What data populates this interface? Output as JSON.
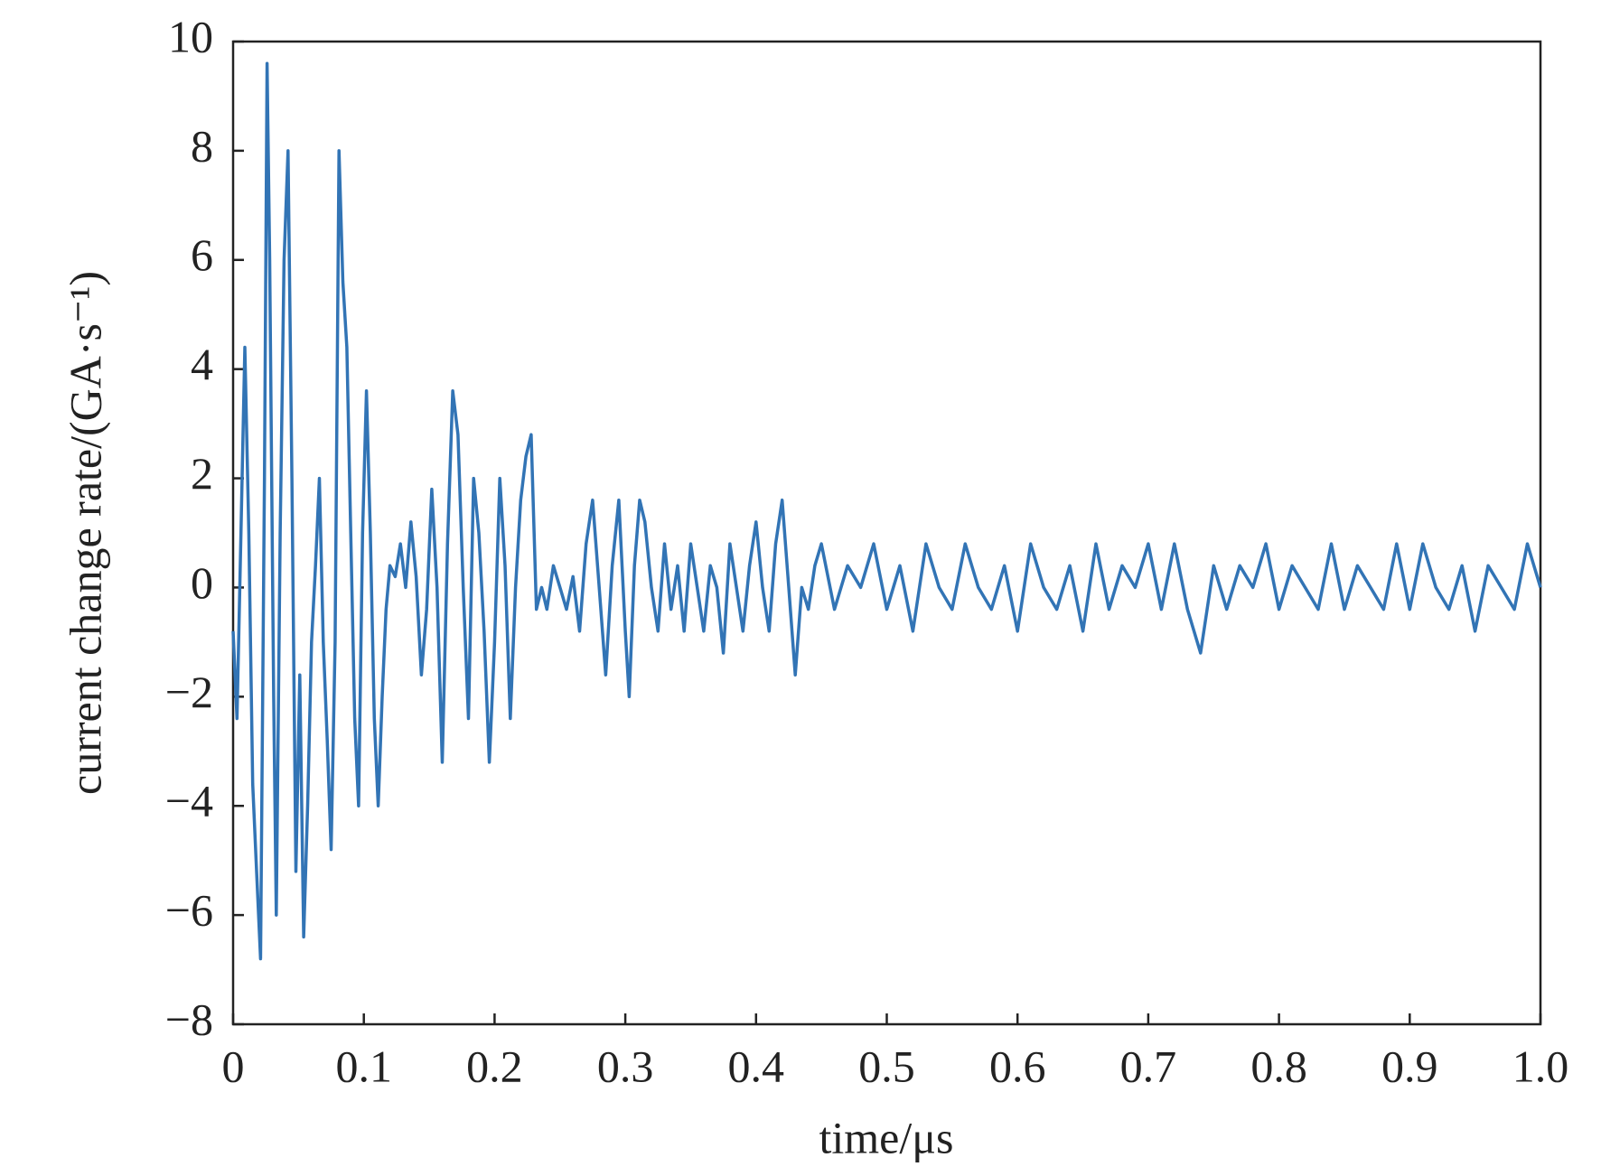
{
  "chart_data": {
    "type": "line",
    "xlabel": "time/μs",
    "ylabel": "current change rate/(GA·s⁻¹)",
    "color": "#3274b5",
    "grid": false,
    "xlim": [
      0,
      1
    ],
    "ylim": [
      -8,
      10
    ],
    "xticks": [
      0,
      0.1,
      0.2,
      0.3,
      0.4,
      0.5,
      0.6,
      0.7,
      0.8,
      0.9,
      {
        "value": 1,
        "label": "1.0"
      }
    ],
    "yticks": [
      {
        "value": -8,
        "label": "−8"
      },
      {
        "value": -6,
        "label": "−6"
      },
      {
        "value": -4,
        "label": "−4"
      },
      {
        "value": -2,
        "label": "−2"
      },
      0,
      2,
      4,
      6,
      8,
      10
    ],
    "x": [
      0,
      0.003,
      0.006,
      0.009,
      0.012,
      0.015,
      0.018,
      0.021,
      0.024,
      0.026,
      0.028,
      0.031,
      0.033,
      0.036,
      0.039,
      0.042,
      0.045,
      0.048,
      0.051,
      0.054,
      0.057,
      0.06,
      0.063,
      0.066,
      0.069,
      0.072,
      0.075,
      0.078,
      0.081,
      0.084,
      0.087,
      0.09,
      0.093,
      0.096,
      0.099,
      0.102,
      0.105,
      0.108,
      0.111,
      0.114,
      0.117,
      0.12,
      0.124,
      0.128,
      0.132,
      0.136,
      0.14,
      0.144,
      0.148,
      0.152,
      0.156,
      0.16,
      0.164,
      0.168,
      0.172,
      0.176,
      0.18,
      0.184,
      0.188,
      0.192,
      0.196,
      0.2,
      0.204,
      0.208,
      0.212,
      0.216,
      0.22,
      0.224,
      0.228,
      0.232,
      0.236,
      0.24,
      0.245,
      0.25,
      0.255,
      0.26,
      0.265,
      0.27,
      0.275,
      0.28,
      0.285,
      0.29,
      0.295,
      0.3,
      0.303,
      0.307,
      0.311,
      0.315,
      0.32,
      0.325,
      0.33,
      0.335,
      0.34,
      0.345,
      0.35,
      0.355,
      0.36,
      0.365,
      0.37,
      0.375,
      0.38,
      0.385,
      0.39,
      0.395,
      0.4,
      0.405,
      0.41,
      0.415,
      0.42,
      0.425,
      0.43,
      0.435,
      0.44,
      0.445,
      0.45,
      0.46,
      0.47,
      0.48,
      0.49,
      0.5,
      0.51,
      0.52,
      0.53,
      0.54,
      0.55,
      0.56,
      0.57,
      0.58,
      0.59,
      0.6,
      0.61,
      0.62,
      0.63,
      0.64,
      0.65,
      0.66,
      0.67,
      0.68,
      0.69,
      0.7,
      0.71,
      0.72,
      0.73,
      0.74,
      0.75,
      0.76,
      0.77,
      0.78,
      0.79,
      0.8,
      0.81,
      0.82,
      0.83,
      0.84,
      0.85,
      0.86,
      0.87,
      0.88,
      0.89,
      0.9,
      0.91,
      0.92,
      0.93,
      0.94,
      0.95,
      0.96,
      0.97,
      0.98,
      0.99,
      1.0
    ],
    "values": [
      -0.8,
      -2.4,
      1.0,
      4.4,
      1.0,
      -3.6,
      -5.2,
      -6.8,
      2.0,
      9.6,
      6.0,
      -2.0,
      -6.0,
      1.0,
      6.0,
      8.0,
      2.0,
      -5.2,
      -1.6,
      -6.4,
      -4.0,
      -1.0,
      0.4,
      2.0,
      -1.0,
      -2.8,
      -4.8,
      -1.0,
      8.0,
      5.6,
      4.4,
      1.0,
      -2.4,
      -4.0,
      1.0,
      3.6,
      1.0,
      -2.4,
      -4.0,
      -2.0,
      -0.4,
      0.4,
      0.2,
      0.8,
      0.0,
      1.2,
      0.2,
      -1.6,
      -0.4,
      1.8,
      0.0,
      -3.2,
      0.8,
      3.6,
      2.8,
      0.0,
      -2.4,
      2.0,
      1.0,
      -0.8,
      -3.2,
      -1.0,
      2.0,
      0.4,
      -2.4,
      0.0,
      1.6,
      2.4,
      2.8,
      -0.4,
      0.0,
      -0.4,
      0.4,
      0.0,
      -0.4,
      0.2,
      -0.8,
      0.8,
      1.6,
      0.0,
      -1.6,
      0.4,
      1.6,
      -0.8,
      -2.0,
      0.4,
      1.6,
      1.2,
      0.0,
      -0.8,
      0.8,
      -0.4,
      0.4,
      -0.8,
      0.8,
      0.0,
      -0.8,
      0.4,
      0.0,
      -1.2,
      0.8,
      0.0,
      -0.8,
      0.4,
      1.2,
      0.0,
      -0.8,
      0.8,
      1.6,
      0.0,
      -1.6,
      0.0,
      -0.4,
      0.4,
      0.8,
      -0.4,
      0.4,
      0.0,
      0.8,
      -0.4,
      0.4,
      -0.8,
      0.8,
      0.0,
      -0.4,
      0.8,
      0.0,
      -0.4,
      0.4,
      -0.8,
      0.8,
      0.0,
      -0.4,
      0.4,
      -0.8,
      0.8,
      -0.4,
      0.4,
      0.0,
      0.8,
      -0.4,
      0.8,
      -0.4,
      -1.2,
      0.4,
      -0.4,
      0.4,
      0.0,
      0.8,
      -0.4,
      0.4,
      0.0,
      -0.4,
      0.8,
      -0.4,
      0.4,
      0.0,
      -0.4,
      0.8,
      -0.4,
      0.8,
      0.0,
      -0.4,
      0.4,
      -0.8,
      0.4,
      0.0,
      -0.4,
      0.8,
      0.0
    ]
  }
}
